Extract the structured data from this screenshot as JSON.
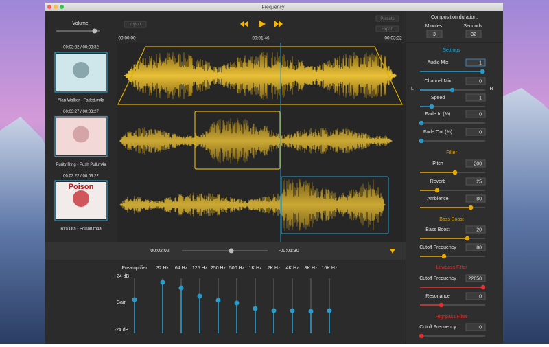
{
  "window_title": "Frequency",
  "toolbar": {
    "volume_label": "Volume:",
    "import": "Import",
    "presets": "Presets",
    "export": "Export",
    "time_start": "00:00:00",
    "time_mid": "00:01:46",
    "time_end": "00:03:32"
  },
  "composition": {
    "title": "Composition duration:",
    "minutes_label": "Minutes:",
    "minutes": 3,
    "seconds_label": "Seconds:",
    "seconds": 32
  },
  "tracks": [
    {
      "time": "00:03:32 / 00:03:32",
      "name": "Alan Walker - Faded.m4a"
    },
    {
      "time": "00:03:27 / 00:03:27",
      "name": "Purity Ring - Push Pull.m4a"
    },
    {
      "time": "00:03:22 / 00:03:22",
      "name": "Rita Ora - Poison.m4a",
      "art_text": "Poison"
    }
  ],
  "transport": {
    "elapsed": "00:02:02",
    "remaining": "-00:01:30"
  },
  "settings": {
    "title": "Settings",
    "left": "L",
    "right": "R",
    "fields": [
      {
        "label": "Audio Mix",
        "value": 1
      },
      {
        "label": "Channel Mix",
        "value": 0
      },
      {
        "label": "Speed",
        "value": 1
      },
      {
        "label": "Fade In (%)",
        "value": 0
      },
      {
        "label": "Fade Out (%)",
        "value": 0
      }
    ]
  },
  "filter": {
    "title": "Filter",
    "fields": [
      {
        "label": "Pitch",
        "value": 200
      },
      {
        "label": "Reverb",
        "value": 25
      },
      {
        "label": "Ambience",
        "value": 80
      }
    ]
  },
  "bass_boost": {
    "title": "Bass Boost",
    "fields": [
      {
        "label": "Bass Boost",
        "value": 20
      },
      {
        "label": "Cutoff Frequency",
        "value": 80
      }
    ]
  },
  "lowpass": {
    "title": "Lowpass Filter",
    "fields": [
      {
        "label": "Cutoff Frequency",
        "value": 22050
      },
      {
        "label": "Resonance",
        "value": 0
      }
    ]
  },
  "highpass": {
    "title": "Highpass Filter",
    "fields": [
      {
        "label": "Cutoff Frequency",
        "value": 0
      }
    ]
  },
  "equalizer": {
    "preamp_label": "Preamplifier",
    "max": "+24 dB",
    "gain": "Gain",
    "min": "-24 dB",
    "bands": [
      "32 Hz",
      "64 Hz",
      "125 Hz",
      "250 Hz",
      "500 Hz",
      "1K Hz",
      "2K Hz",
      "4K Hz",
      "8K Hz",
      "16K Hz"
    ]
  }
}
